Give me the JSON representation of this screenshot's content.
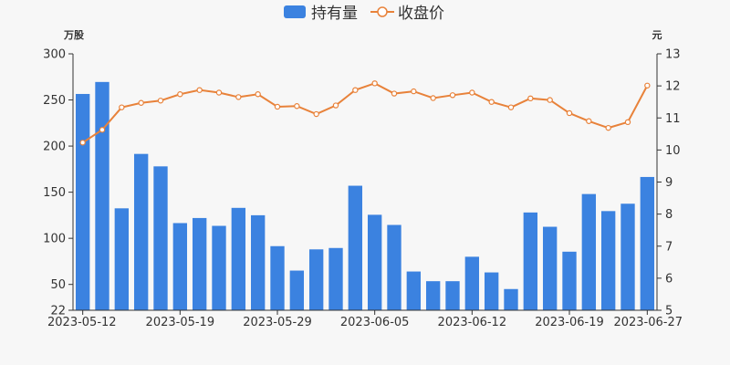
{
  "chart_data": {
    "type": "bar",
    "legend": {
      "placement": "top-center",
      "items": [
        {
          "label": "持有量",
          "kind": "bar"
        },
        {
          "label": "收盘价",
          "kind": "line"
        }
      ]
    },
    "left_axis": {
      "unit": "万股",
      "min": 22,
      "max": 300,
      "ticks": [
        22,
        50,
        100,
        150,
        200,
        250,
        300
      ]
    },
    "right_axis": {
      "unit": "元",
      "min": 5,
      "max": 13,
      "ticks": [
        5,
        6,
        7,
        8,
        9,
        10,
        11,
        12,
        13
      ]
    },
    "x_tick_labels": [
      {
        "index": 0,
        "label": "2023-05-12"
      },
      {
        "index": 5,
        "label": "2023-05-19"
      },
      {
        "index": 10,
        "label": "2023-05-29"
      },
      {
        "index": 15,
        "label": "2023-06-05"
      },
      {
        "index": 20,
        "label": "2023-06-12"
      },
      {
        "index": 25,
        "label": "2023-06-19"
      },
      {
        "index": 29,
        "label": "2023-06-27"
      }
    ],
    "series": [
      {
        "name": "持有量",
        "type": "bar",
        "axis": "left",
        "color": "#3b82e0",
        "values": [
          256.5,
          269.5,
          132.5,
          191.5,
          178,
          116.5,
          122,
          113.5,
          133,
          125,
          91.5,
          65,
          88,
          89.5,
          157,
          125.5,
          114.5,
          64,
          53.5,
          53.5,
          80,
          63,
          45,
          128,
          112.5,
          85.5,
          148,
          129.5,
          137.5,
          166.5
        ]
      },
      {
        "name": "收盘价",
        "type": "line",
        "axis": "right",
        "color": "#e8823a",
        "values": [
          10.23,
          10.63,
          11.33,
          11.47,
          11.54,
          11.74,
          11.87,
          11.79,
          11.65,
          11.74,
          11.35,
          11.37,
          11.12,
          11.39,
          11.87,
          12.08,
          11.76,
          11.83,
          11.62,
          11.71,
          11.79,
          11.5,
          11.33,
          11.61,
          11.56,
          11.15,
          10.9,
          10.69,
          10.87,
          12.01
        ]
      }
    ]
  }
}
